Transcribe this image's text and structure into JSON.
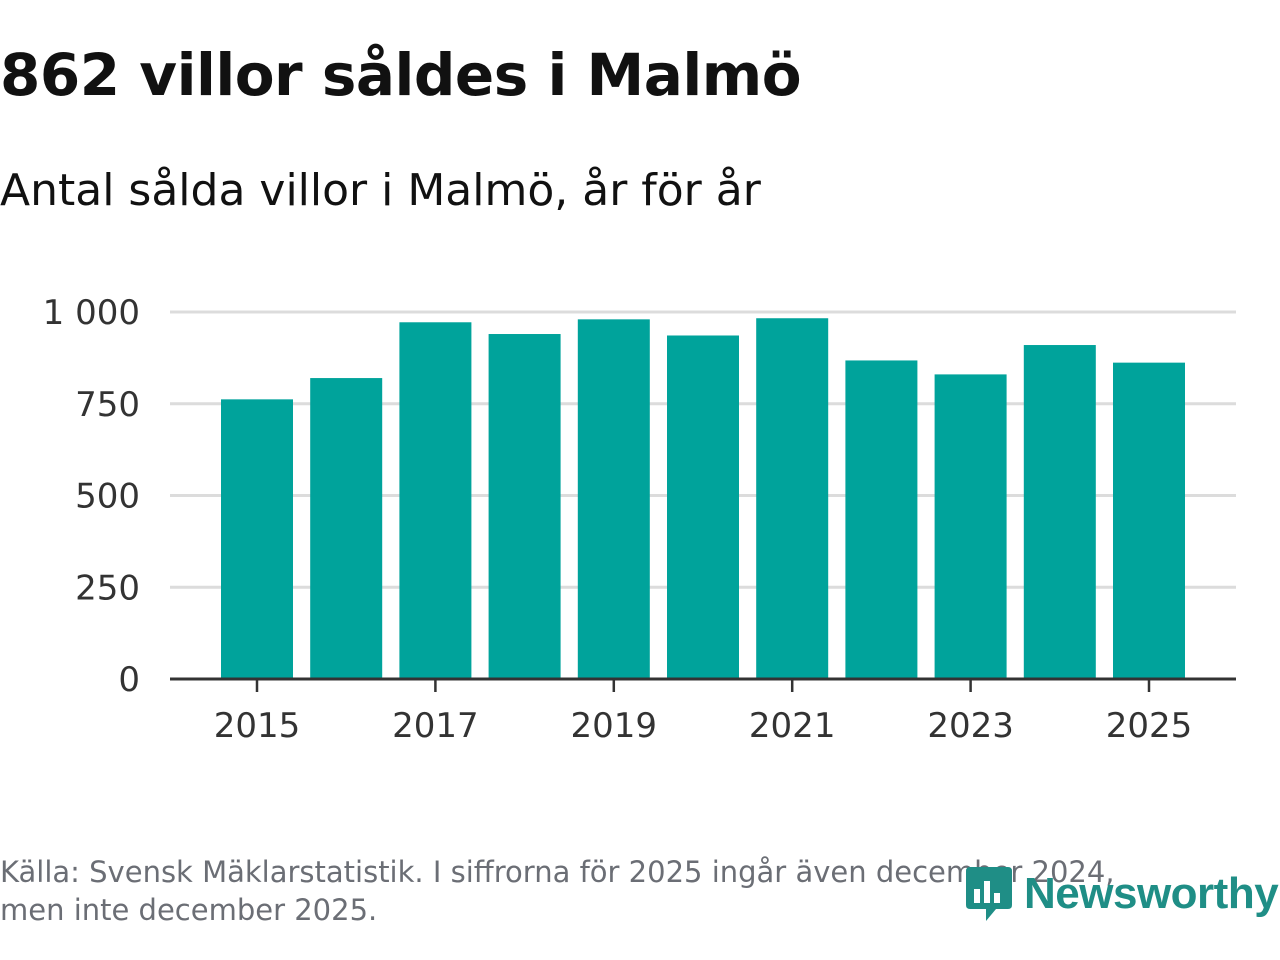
{
  "colors": {
    "bar": "#00a39b",
    "grid": "#dcdcdc",
    "axis": "#333333",
    "brand": "#1f8e86"
  },
  "header": {
    "title": "862 villor såldes i Malmö",
    "subtitle": "Antal sålda villor i Malmö, år för år"
  },
  "footer": {
    "source_line1": "Källa: Svensk Mäklarstatistik. I siffrorna för 2025 ingår även december 2024,",
    "source_line2": "men inte december 2025."
  },
  "brand": {
    "name": "Newsworthy",
    "icon": "bar-chart-bubble-icon"
  },
  "chart_data": {
    "type": "bar",
    "title": "862 villor såldes i Malmö",
    "subtitle": "Antal sålda villor i Malmö, år för år",
    "categories": [
      "2015",
      "2016",
      "2017",
      "2018",
      "2019",
      "2020",
      "2021",
      "2022",
      "2023",
      "2024",
      "2025"
    ],
    "values": [
      762,
      820,
      972,
      940,
      980,
      936,
      983,
      868,
      830,
      910,
      862
    ],
    "x_tick_labels": [
      "2015",
      "2017",
      "2019",
      "2021",
      "2023",
      "2025"
    ],
    "y_ticks": [
      0,
      250,
      500,
      750,
      1000
    ],
    "y_tick_labels": [
      "0",
      "250",
      "500",
      "750",
      "1 000"
    ],
    "ylim": [
      0,
      1000
    ],
    "xlabel": "",
    "ylabel": "",
    "grid": true,
    "legend": "none"
  }
}
